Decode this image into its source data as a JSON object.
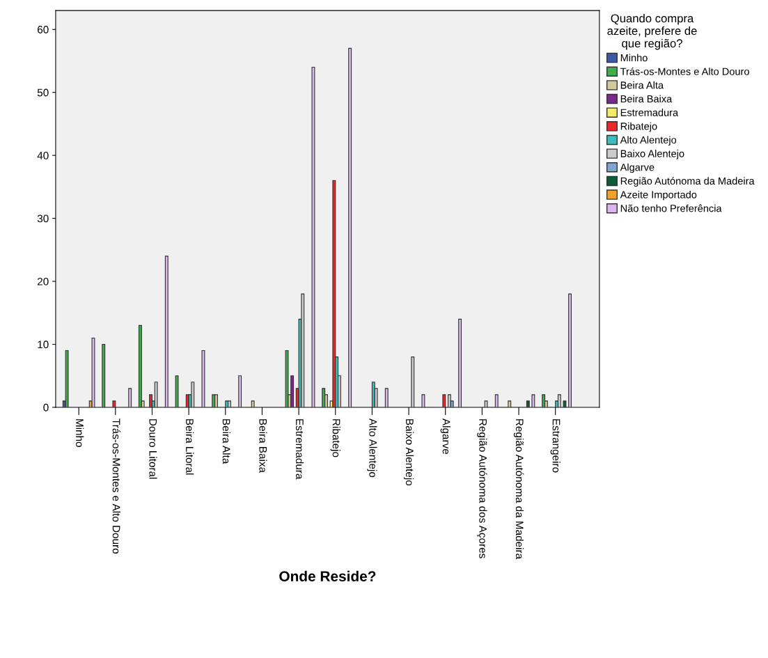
{
  "chart_data": {
    "type": "bar",
    "xlabel": "Onde Reside?",
    "legend_title": "Quando compra\nazeite, prefere de\nque região?",
    "categories": [
      "Minho",
      "Trás-os-Montes e Alto Douro",
      "Douro Litoral",
      "Beira Litoral",
      "Beira Alta",
      "Beira Baixa",
      "Estremadura",
      "Ribatejo",
      "Alto Alentejo",
      "Baixo Alentejo",
      "Algarve",
      "Região Autónoma dos Açores",
      "Região Autónoma da Madeira",
      "Estrangeiro"
    ],
    "ylim": [
      0,
      63
    ],
    "yticks": [
      0,
      10,
      20,
      30,
      40,
      50,
      60
    ],
    "grid": false,
    "legend": "right",
    "series": [
      {
        "name": "Minho",
        "color": "#3d5aa8",
        "values": [
          1,
          null,
          null,
          null,
          null,
          null,
          null,
          null,
          null,
          null,
          null,
          null,
          null,
          null
        ]
      },
      {
        "name": "Trás-os-Montes e Alto Douro",
        "color": "#3fae49",
        "values": [
          9,
          10,
          13,
          5,
          2,
          null,
          9,
          3,
          null,
          null,
          null,
          null,
          null,
          2
        ]
      },
      {
        "name": "Beira Alta",
        "color": "#d2c99b",
        "values": [
          null,
          null,
          1,
          null,
          2,
          1,
          2,
          2,
          null,
          null,
          null,
          null,
          1,
          1
        ]
      },
      {
        "name": "Beira Baixa",
        "color": "#7a2a8c",
        "values": [
          null,
          null,
          null,
          null,
          null,
          null,
          5,
          null,
          null,
          null,
          null,
          null,
          null,
          null
        ]
      },
      {
        "name": "Estremadura",
        "color": "#f2ee6b",
        "values": [
          null,
          null,
          null,
          null,
          null,
          null,
          null,
          1,
          null,
          null,
          null,
          null,
          null,
          null
        ]
      },
      {
        "name": "Ribatejo",
        "color": "#e8292b",
        "values": [
          null,
          1,
          2,
          2,
          null,
          null,
          3,
          36,
          null,
          null,
          2,
          null,
          null,
          null
        ]
      },
      {
        "name": "Alto Alentejo",
        "color": "#3ebfbf",
        "values": [
          null,
          null,
          1,
          2,
          1,
          null,
          14,
          8,
          4,
          null,
          null,
          null,
          null,
          1
        ]
      },
      {
        "name": "Baixo Alentejo",
        "color": "#cccccc",
        "values": [
          null,
          null,
          4,
          4,
          1,
          null,
          18,
          5,
          3,
          8,
          2,
          1,
          null,
          2
        ]
      },
      {
        "name": "Algarve",
        "color": "#7fa6cf",
        "values": [
          null,
          null,
          null,
          null,
          null,
          null,
          null,
          null,
          null,
          null,
          1,
          null,
          null,
          null
        ]
      },
      {
        "name": "Região Autónoma da Madeira",
        "color": "#0b5d36",
        "values": [
          null,
          null,
          null,
          null,
          null,
          null,
          null,
          null,
          null,
          null,
          null,
          null,
          1,
          1
        ]
      },
      {
        "name": "Azeite Importado",
        "color": "#f3a12a",
        "values": [
          1,
          null,
          null,
          null,
          null,
          null,
          null,
          null,
          null,
          null,
          null,
          null,
          null,
          null
        ]
      },
      {
        "name": "Não tenho Preferência",
        "color": "#d9b8f0",
        "values": [
          11,
          3,
          24,
          9,
          5,
          null,
          54,
          57,
          3,
          2,
          14,
          2,
          2,
          18
        ]
      }
    ]
  }
}
